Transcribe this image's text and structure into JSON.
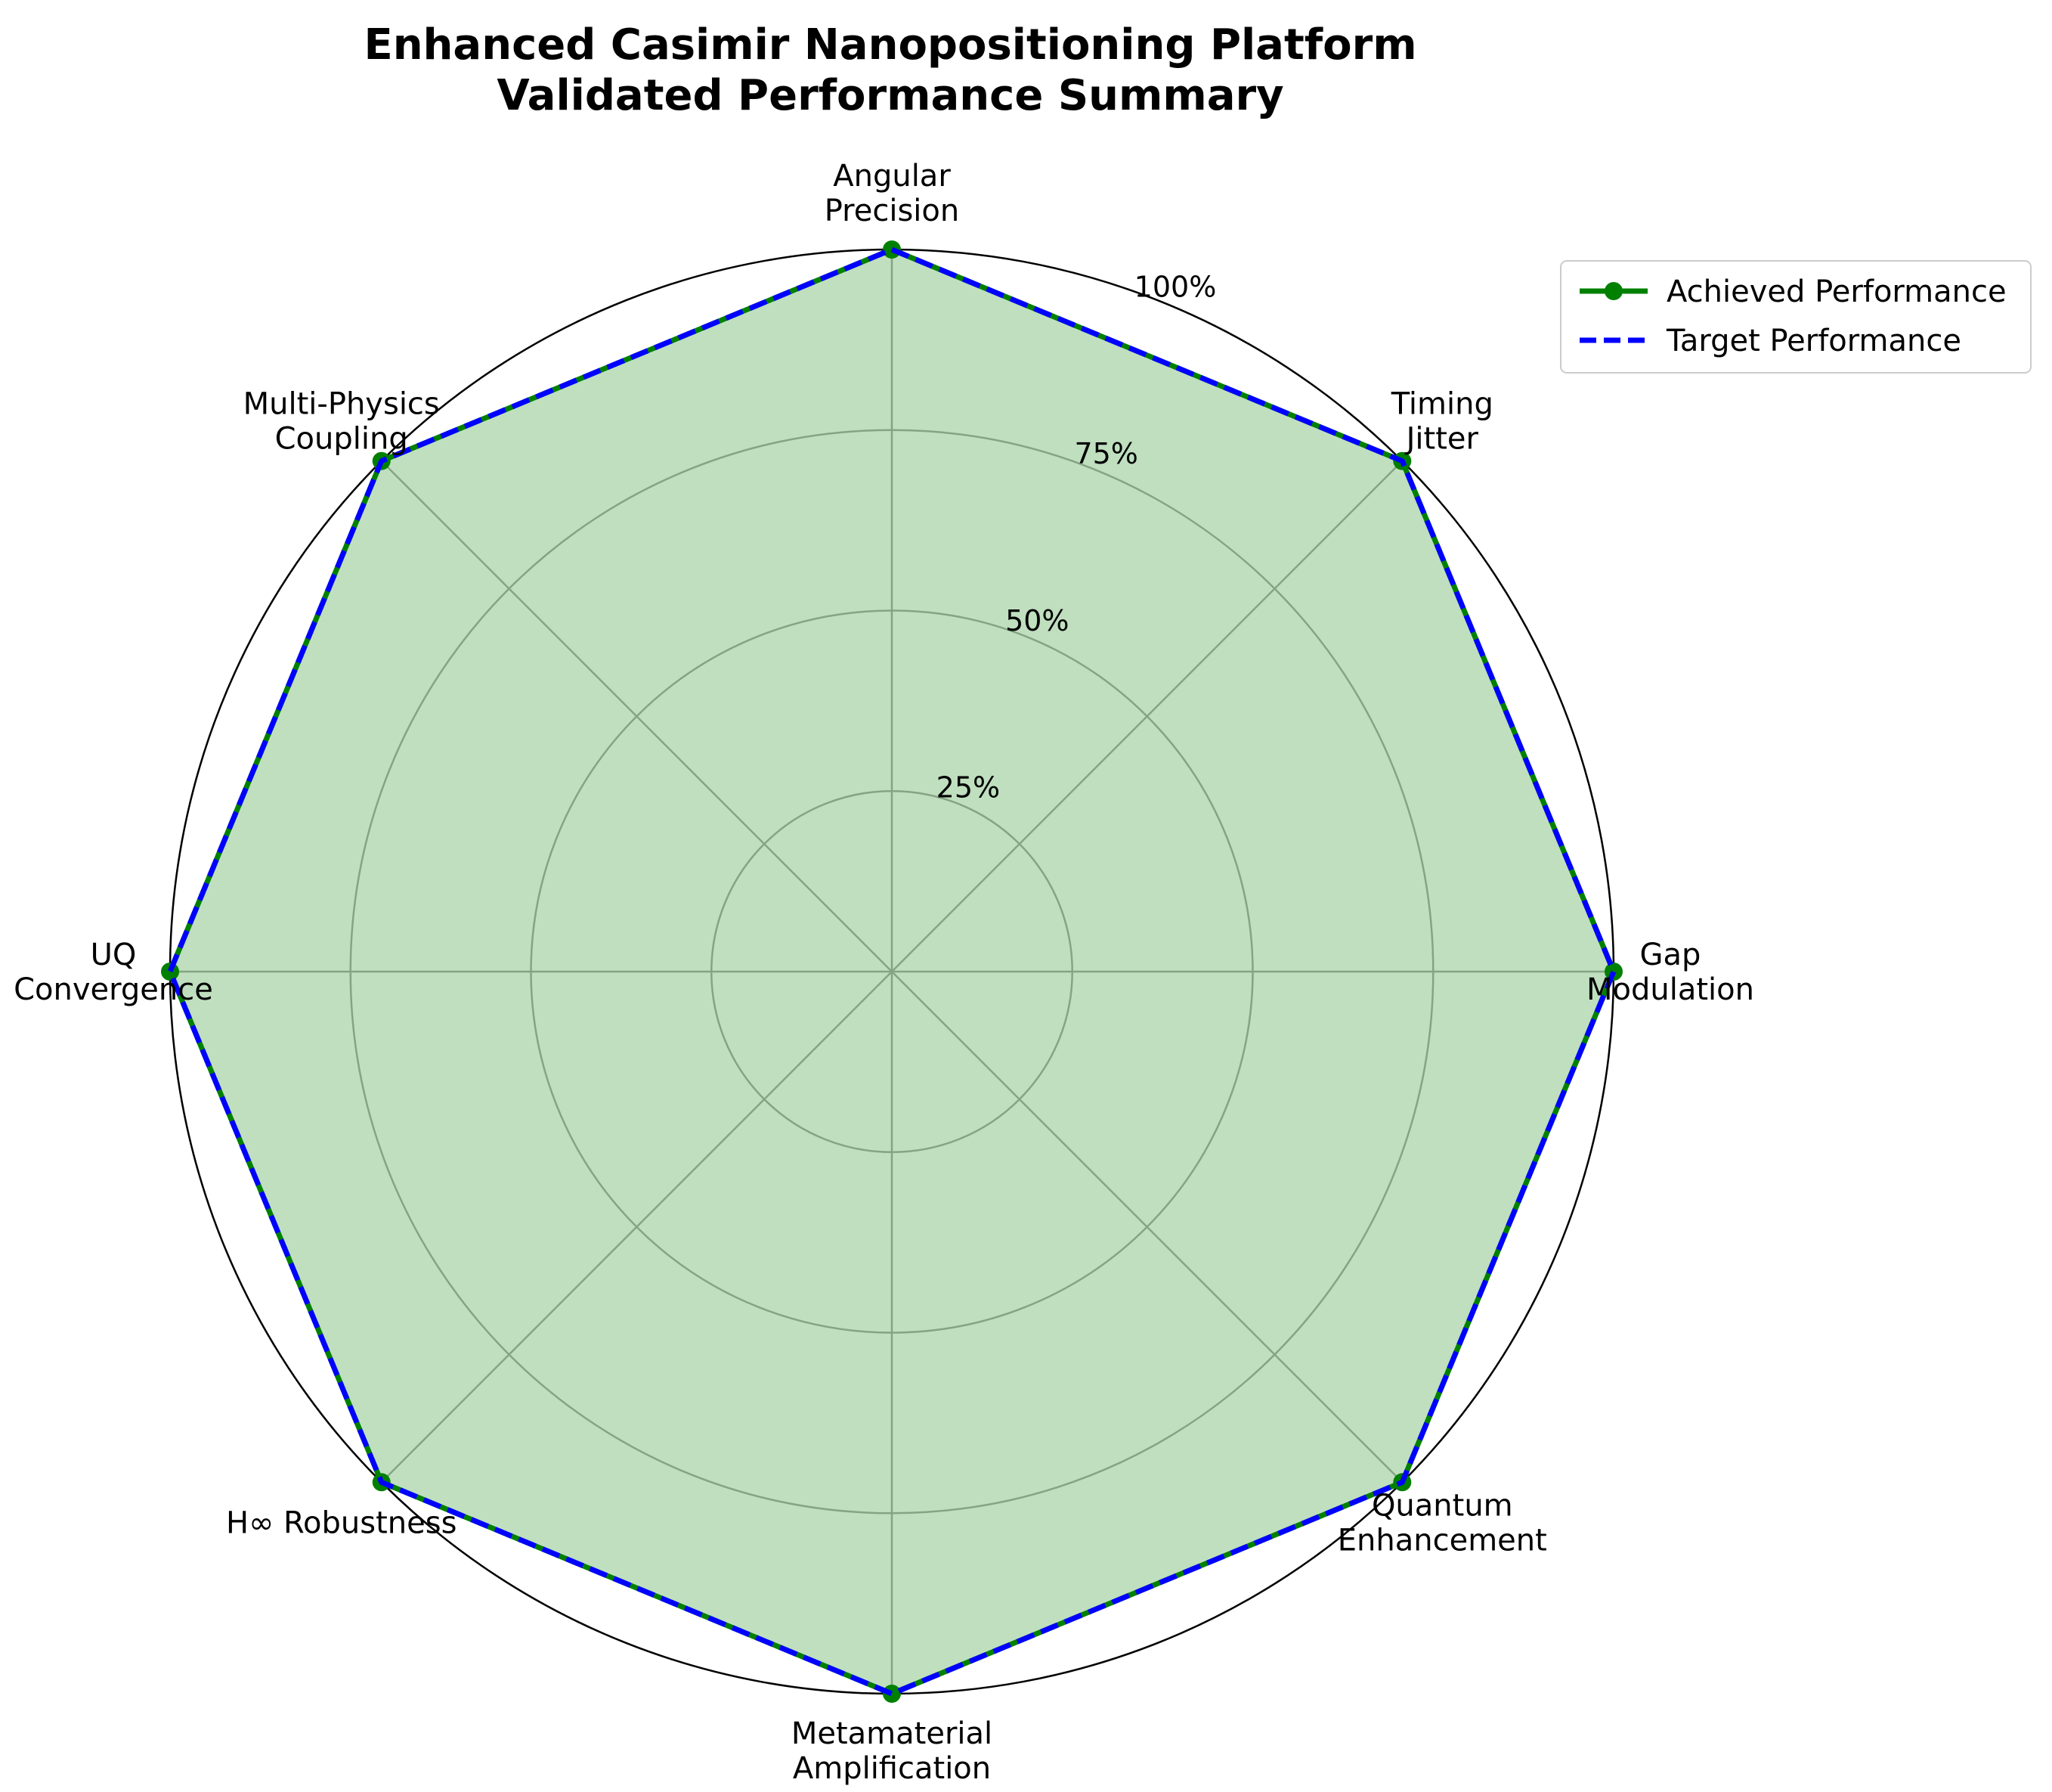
{
  "chart_data": {
    "type": "radar",
    "title_lines": [
      "Enhanced Casimir Nanopositioning Platform",
      "Validated Performance Summary"
    ],
    "categories": [
      "Angular\nPrecision",
      "Timing\nJitter",
      "Gap\nModulation",
      "Quantum\nEnhancement",
      "Metamaterial\nAmplification",
      "H∞ Robustness",
      "UQ\nConvergence",
      "Multi-Physics\nCoupling"
    ],
    "series": [
      {
        "name": "Achieved Performance",
        "values": [
          100,
          100,
          100,
          100,
          100,
          100,
          100,
          100
        ],
        "color": "#008000",
        "style": "solid-markers"
      },
      {
        "name": "Target Performance",
        "values": [
          100,
          100,
          100,
          100,
          100,
          100,
          100,
          100
        ],
        "color": "#0000ff",
        "style": "dashed"
      }
    ],
    "fill_color": "#008000",
    "rlim": [
      0,
      100
    ],
    "rticks": [
      25,
      50,
      75,
      100
    ],
    "rtick_labels": [
      "25%",
      "50%",
      "75%",
      "100%"
    ],
    "grid": true,
    "legend_location": "upper-right outside"
  }
}
